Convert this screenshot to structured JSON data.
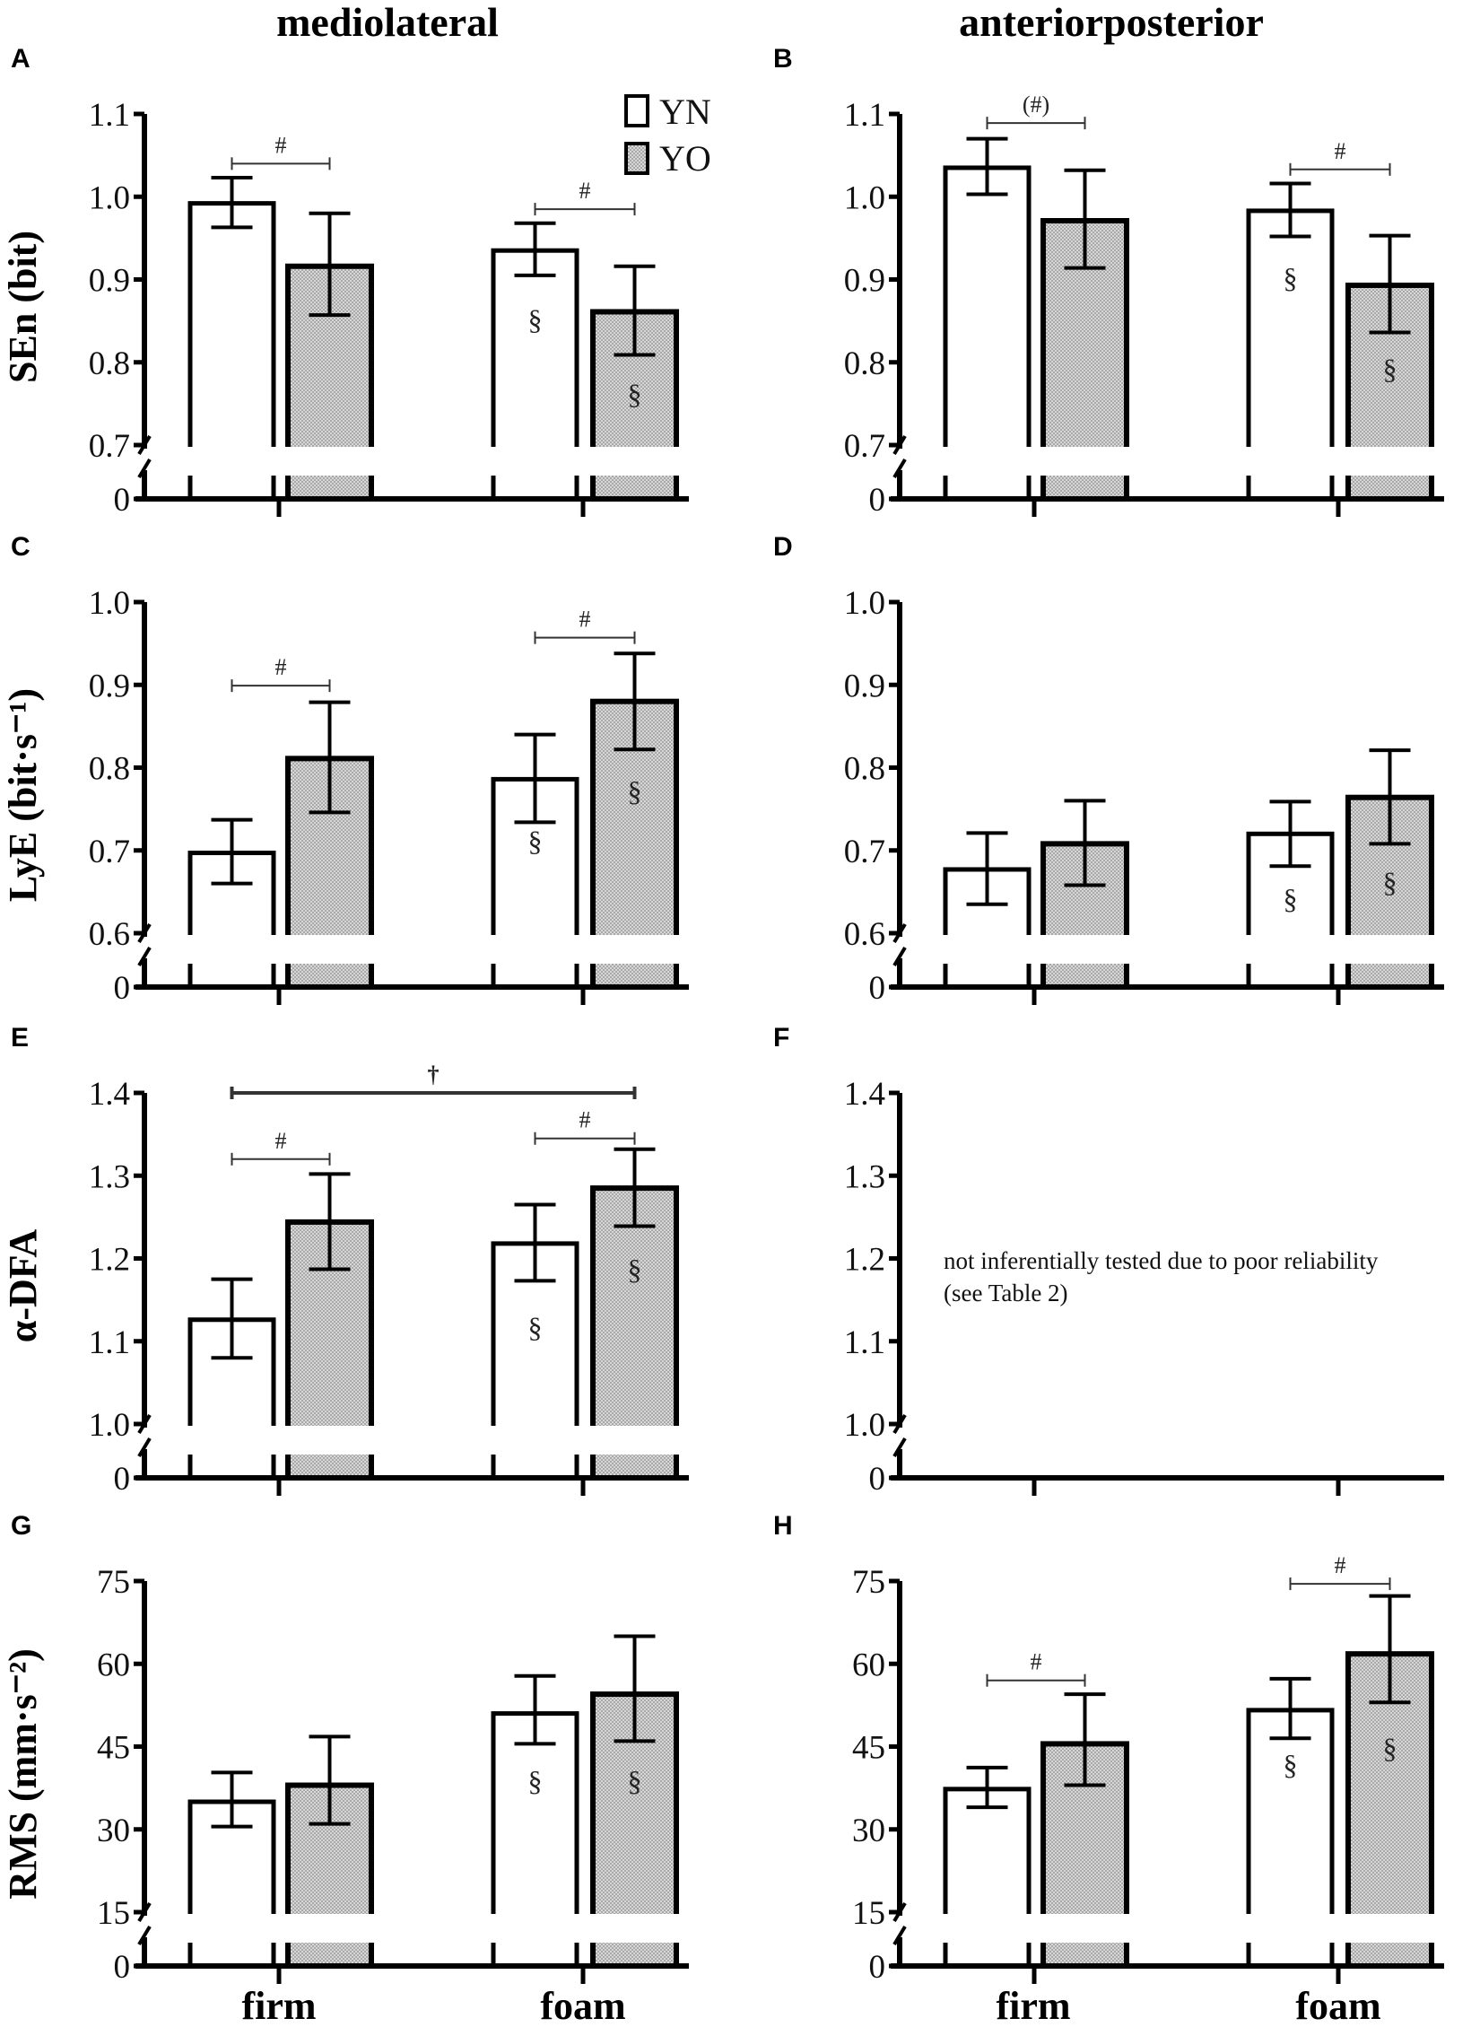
{
  "column_titles": [
    "mediolateral",
    "anteriorposterior"
  ],
  "x_labels": [
    "firm",
    "foam"
  ],
  "legend": [
    {
      "label": "YN",
      "fill": "#ffffff"
    },
    {
      "label": "YO",
      "fill": "#c9c9c9"
    }
  ],
  "colors": {
    "yn": "#ffffff",
    "yo": "#c9c9c9",
    "stroke": "#000000"
  },
  "chart_data": [
    {
      "panel": "A",
      "type": "bar",
      "ylabel": "SEn (bit)",
      "ylim": [
        0.7,
        1.1
      ],
      "ticks": [
        "0.7",
        "0.8",
        "0.9",
        "1.0",
        "1.1"
      ],
      "zero_label": "0",
      "categories": [
        "firm",
        "foam"
      ],
      "series": [
        {
          "name": "YN",
          "values": [
            0.992,
            0.935
          ],
          "err_low": [
            0.963,
            0.905
          ],
          "err_high": [
            1.023,
            0.968
          ]
        },
        {
          "name": "YO",
          "values": [
            0.916,
            0.861
          ],
          "err_low": [
            0.857,
            0.809
          ],
          "err_high": [
            0.98,
            0.916
          ]
        }
      ],
      "brackets": [
        {
          "label": "#",
          "from": [
            0,
            0
          ],
          "to": [
            0,
            1
          ],
          "y": 1.04
        },
        {
          "label": "#",
          "from": [
            1,
            0
          ],
          "to": [
            1,
            1
          ],
          "y": 0.985
        }
      ],
      "section_marks": [
        {
          "cat": 1,
          "series": 0,
          "y": 0.84
        },
        {
          "cat": 1,
          "series": 1,
          "y": 0.75
        }
      ]
    },
    {
      "panel": "B",
      "type": "bar",
      "ylabel": "",
      "ylim": [
        0.7,
        1.1
      ],
      "ticks": [
        "0.7",
        "0.8",
        "0.9",
        "1.0",
        "1.1"
      ],
      "zero_label": "0",
      "categories": [
        "firm",
        "foam"
      ],
      "series": [
        {
          "name": "YN",
          "values": [
            1.035,
            0.983
          ],
          "err_low": [
            1.003,
            0.952
          ],
          "err_high": [
            1.07,
            1.016
          ]
        },
        {
          "name": "YO",
          "values": [
            0.971,
            0.893
          ],
          "err_low": [
            0.914,
            0.836
          ],
          "err_high": [
            1.032,
            0.953
          ]
        }
      ],
      "brackets": [
        {
          "label": "(#)",
          "from": [
            0,
            0
          ],
          "to": [
            0,
            1
          ],
          "y": 1.089
        },
        {
          "label": "#",
          "from": [
            1,
            0
          ],
          "to": [
            1,
            1
          ],
          "y": 1.033
        }
      ],
      "section_marks": [
        {
          "cat": 1,
          "series": 0,
          "y": 0.89
        },
        {
          "cat": 1,
          "series": 1,
          "y": 0.78
        }
      ]
    },
    {
      "panel": "C",
      "type": "bar",
      "ylabel": "LyE (bit·s⁻¹)",
      "ylim": [
        0.6,
        1.0
      ],
      "ticks": [
        "0.6",
        "0.7",
        "0.8",
        "0.9",
        "1.0"
      ],
      "zero_label": "0",
      "categories": [
        "firm",
        "foam"
      ],
      "series": [
        {
          "name": "YN",
          "values": [
            0.697,
            0.786
          ],
          "err_low": [
            0.66,
            0.734
          ],
          "err_high": [
            0.737,
            0.84
          ]
        },
        {
          "name": "YO",
          "values": [
            0.811,
            0.88
          ],
          "err_low": [
            0.746,
            0.822
          ],
          "err_high": [
            0.879,
            0.938
          ]
        }
      ],
      "brackets": [
        {
          "label": "#",
          "from": [
            0,
            0
          ],
          "to": [
            0,
            1
          ],
          "y": 0.899
        },
        {
          "label": "#",
          "from": [
            1,
            0
          ],
          "to": [
            1,
            1
          ],
          "y": 0.957
        }
      ],
      "section_marks": [
        {
          "cat": 1,
          "series": 0,
          "y": 0.7
        },
        {
          "cat": 1,
          "series": 1,
          "y": 0.76
        }
      ]
    },
    {
      "panel": "D",
      "type": "bar",
      "ylabel": "",
      "ylim": [
        0.6,
        1.0
      ],
      "ticks": [
        "0.6",
        "0.7",
        "0.8",
        "0.9",
        "1.0"
      ],
      "zero_label": "0",
      "categories": [
        "firm",
        "foam"
      ],
      "series": [
        {
          "name": "YN",
          "values": [
            0.677,
            0.72
          ],
          "err_low": [
            0.635,
            0.681
          ],
          "err_high": [
            0.721,
            0.759
          ]
        },
        {
          "name": "YO",
          "values": [
            0.708,
            0.764
          ],
          "err_low": [
            0.658,
            0.708
          ],
          "err_high": [
            0.76,
            0.821
          ]
        }
      ],
      "brackets": [],
      "section_marks": [
        {
          "cat": 1,
          "series": 0,
          "y": 0.63
        },
        {
          "cat": 1,
          "series": 1,
          "y": 0.65
        }
      ]
    },
    {
      "panel": "E",
      "type": "bar",
      "ylabel": "α-DFA",
      "ylim": [
        1.0,
        1.4
      ],
      "ticks": [
        "1.0",
        "1.1",
        "1.2",
        "1.3",
        "1.4"
      ],
      "zero_label": "0",
      "categories": [
        "firm",
        "foam"
      ],
      "series": [
        {
          "name": "YN",
          "values": [
            1.126,
            1.218
          ],
          "err_low": [
            1.08,
            1.173
          ],
          "err_high": [
            1.175,
            1.265
          ]
        },
        {
          "name": "YO",
          "values": [
            1.244,
            1.285
          ],
          "err_low": [
            1.187,
            1.239
          ],
          "err_high": [
            1.302,
            1.332
          ]
        }
      ],
      "brackets": [
        {
          "label": "†",
          "from": [
            0,
            0
          ],
          "to": [
            1,
            1
          ],
          "y": 1.4,
          "bold": true
        },
        {
          "label": "#",
          "from": [
            0,
            0
          ],
          "to": [
            0,
            1
          ],
          "y": 1.32
        },
        {
          "label": "#",
          "from": [
            1,
            0
          ],
          "to": [
            1,
            1
          ],
          "y": 1.345
        }
      ],
      "section_marks": [
        {
          "cat": 1,
          "series": 0,
          "y": 1.105
        },
        {
          "cat": 1,
          "series": 1,
          "y": 1.175
        }
      ]
    },
    {
      "panel": "F",
      "type": "bar",
      "ylabel": "",
      "ylim": [
        1.0,
        1.4
      ],
      "ticks": [
        "1.0",
        "1.1",
        "1.2",
        "1.3",
        "1.4"
      ],
      "zero_label": "0",
      "categories": [
        "firm",
        "foam"
      ],
      "series": [],
      "brackets": [],
      "section_marks": [],
      "note": [
        "not inferentially tested due to poor reliability",
        "(see Table 2)"
      ]
    },
    {
      "panel": "G",
      "type": "bar",
      "ylabel": "RMS (mm·s⁻²)",
      "ylim": [
        15,
        75
      ],
      "ticks": [
        "15",
        "30",
        "45",
        "60",
        "75"
      ],
      "zero_label": "0",
      "categories": [
        "firm",
        "foam"
      ],
      "series": [
        {
          "name": "YN",
          "values": [
            35.0,
            51.0
          ],
          "err_low": [
            30.5,
            45.5
          ],
          "err_high": [
            40.3,
            57.8
          ]
        },
        {
          "name": "YO",
          "values": [
            38.0,
            54.5
          ],
          "err_low": [
            31.0,
            46.0
          ],
          "err_high": [
            46.8,
            65.0
          ]
        }
      ],
      "brackets": [],
      "section_marks": [
        {
          "cat": 1,
          "series": 0,
          "y": 37
        },
        {
          "cat": 1,
          "series": 1,
          "y": 37
        }
      ]
    },
    {
      "panel": "H",
      "type": "bar",
      "ylabel": "",
      "ylim": [
        15,
        75
      ],
      "ticks": [
        "15",
        "30",
        "45",
        "60",
        "75"
      ],
      "zero_label": "0",
      "categories": [
        "firm",
        "foam"
      ],
      "series": [
        {
          "name": "YN",
          "values": [
            37.3,
            51.6
          ],
          "err_low": [
            34.0,
            46.5
          ],
          "err_high": [
            41.2,
            57.3
          ]
        },
        {
          "name": "YO",
          "values": [
            45.5,
            61.8
          ],
          "err_low": [
            38.0,
            53.0
          ],
          "err_high": [
            54.5,
            72.3
          ]
        }
      ],
      "brackets": [
        {
          "label": "#",
          "from": [
            0,
            0
          ],
          "to": [
            0,
            1
          ],
          "y": 57.0
        },
        {
          "label": "#",
          "from": [
            1,
            0
          ],
          "to": [
            1,
            1
          ],
          "y": 74.5
        }
      ],
      "section_marks": [
        {
          "cat": 1,
          "series": 0,
          "y": 40
        },
        {
          "cat": 1,
          "series": 1,
          "y": 43
        }
      ]
    }
  ]
}
